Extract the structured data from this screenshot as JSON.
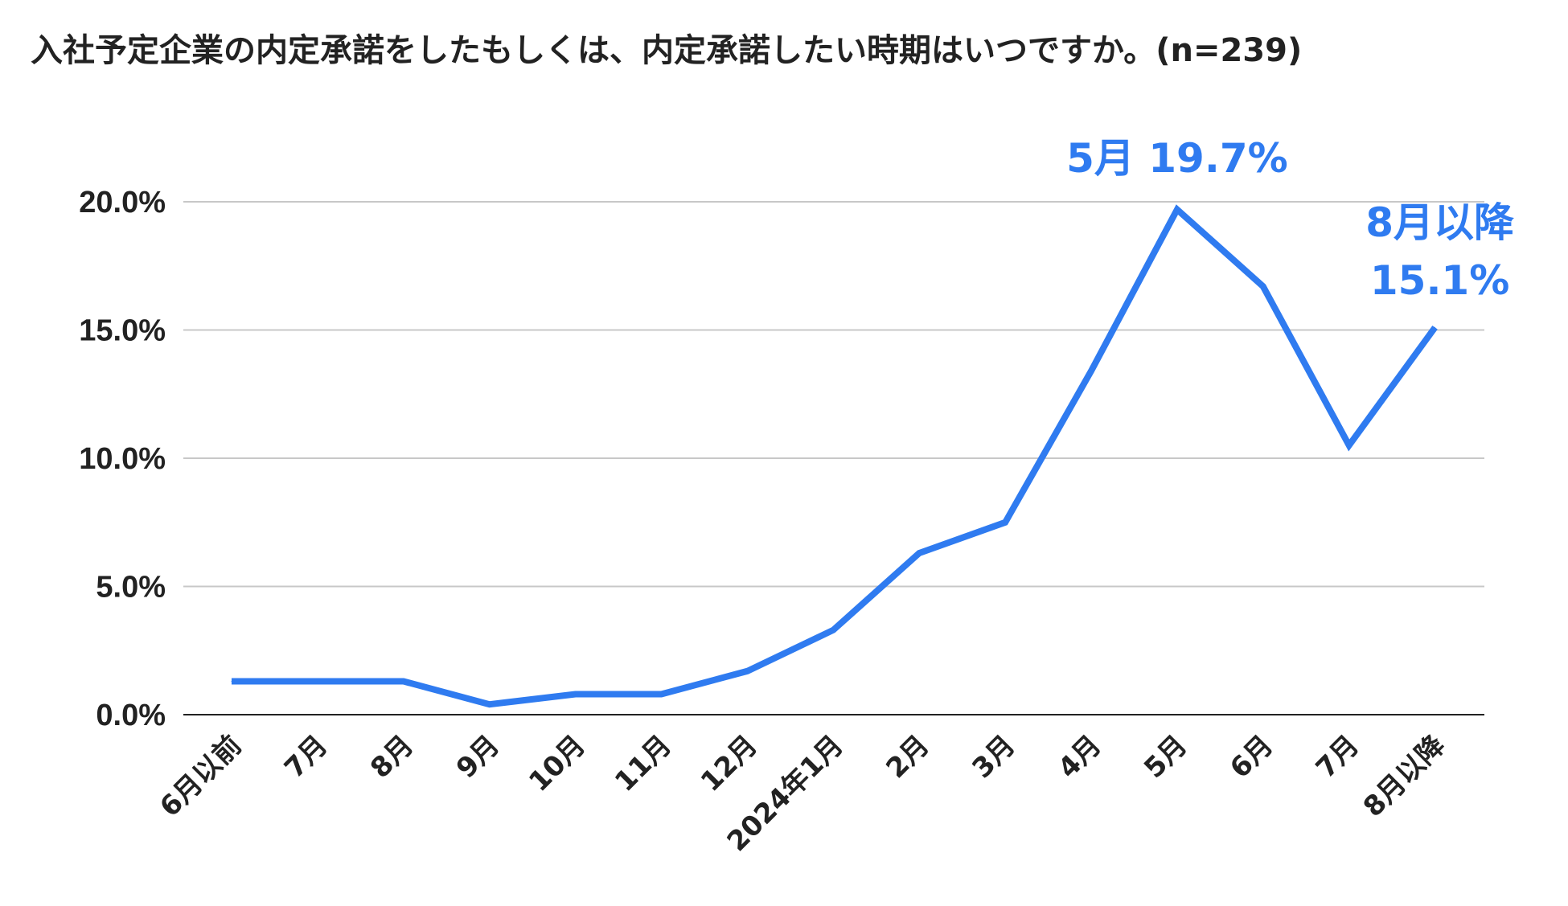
{
  "chart_data": {
    "type": "line",
    "title": "入社予定企業の内定承諾をしたもしくは、内定承諾したい時期はいつですか。(n=239)",
    "xlabel": "",
    "ylabel": "",
    "categories": [
      "6月以前",
      "7月",
      "8月",
      "9月",
      "10月",
      "11月",
      "12月",
      "2024年1月",
      "2月",
      "3月",
      "4月",
      "5月",
      "6月",
      "7月",
      "8月以降"
    ],
    "series": [
      {
        "values": [
          1.3,
          1.3,
          1.3,
          0.4,
          0.8,
          0.8,
          1.7,
          3.3,
          6.3,
          7.5,
          13.4,
          19.7,
          16.7,
          10.5,
          15.1
        ],
        "color": "#2f7bf0"
      }
    ],
    "ylim": [
      0,
      20
    ],
    "yticks": [
      "0.0%",
      "5.0%",
      "10.0%",
      "15.0%",
      "20.0%"
    ],
    "grid": true,
    "legend": "none",
    "annotations": [
      {
        "category": "5月",
        "lines": [
          "5月 19.7%"
        ]
      },
      {
        "category": "8月以降",
        "lines": [
          "8月以降",
          "15.1%"
        ]
      }
    ]
  }
}
